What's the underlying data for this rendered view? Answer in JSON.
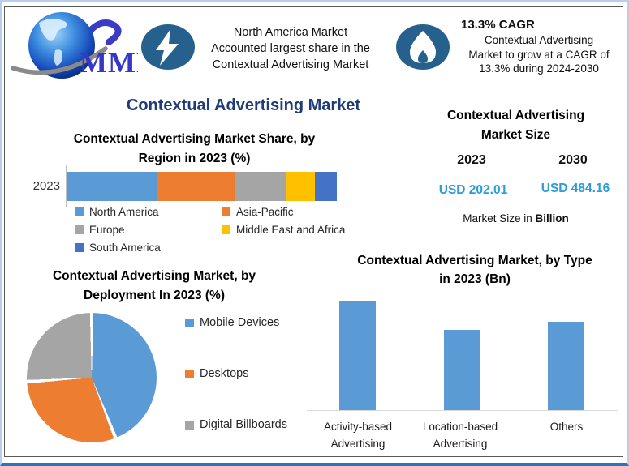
{
  "logo": {
    "text": "MMR"
  },
  "header": {
    "highlight_share": {
      "lines": [
        "North America Market",
        "Accounted largest share in the",
        "Contextual Advertising Market"
      ]
    },
    "highlight_cagr": {
      "title": "13.3% CAGR",
      "lines": [
        "Contextual Advertising",
        "Market to grow at a CAGR of",
        "13.3% during 2024-2030"
      ]
    }
  },
  "main_title": "Contextual Advertising Market",
  "market_size": {
    "title_lines": [
      "Contextual Advertising",
      "Market Size"
    ],
    "years": [
      "2023",
      "2030"
    ],
    "values": [
      "USD 202.01",
      "USD 484.16"
    ],
    "note_prefix": "Market Size in ",
    "note_bold": "Billion"
  },
  "chart_data": [
    {
      "type": "bar",
      "subtype": "horizontal-stacked-100pct",
      "title": "Contextual Advertising Market Share, by Region in 2023 (%)",
      "title_lines": [
        "Contextual Advertising Market Share, by",
        "Region in 2023 (%)"
      ],
      "categories": [
        "2023"
      ],
      "series": [
        {
          "name": "North America",
          "values": [
            33
          ],
          "color": "#5B9BD5"
        },
        {
          "name": "Asia-Pacific",
          "values": [
            29
          ],
          "color": "#ED7D31"
        },
        {
          "name": "Europe",
          "values": [
            19
          ],
          "color": "#A5A5A5"
        },
        {
          "name": "Middle East and Africa",
          "values": [
            11
          ],
          "color": "#FFC000"
        },
        {
          "name": "South America",
          "values": [
            8
          ],
          "color": "#4472C4"
        }
      ],
      "xlabel": "",
      "ylabel": "",
      "xlim": [
        0,
        100
      ],
      "grid": false,
      "legend_position": "bottom"
    },
    {
      "type": "pie",
      "title": "Contextual Advertising Market, by Deployment In 2023 (%)",
      "title_lines": [
        "Contextual Advertising Market, by",
        "Deployment In 2023 (%)"
      ],
      "labels": [
        "Mobile Devices",
        "Desktops",
        "Digital Billboards"
      ],
      "values": [
        44,
        30,
        26
      ],
      "colors": [
        "#5B9BD5",
        "#ED7D31",
        "#A5A5A5"
      ],
      "start_angle_deg": 0,
      "legend_position": "right"
    },
    {
      "type": "bar",
      "title": "Contextual Advertising Market, by Type in 2023 (Bn)",
      "title_lines": [
        "Contextual Advertising Market, by Type",
        "in 2023 (Bn)"
      ],
      "categories": [
        "Activity-based Advertising",
        "Location-based Advertising",
        "Others"
      ],
      "values": [
        79,
        58,
        64
      ],
      "bar_color": "#5B9BD5",
      "xlabel": "",
      "ylabel": "",
      "y_axis_visible": false,
      "grid": false
    }
  ],
  "colors": {
    "accent_navy": "#1F3C78",
    "icon_circle": "#26618E",
    "value_blue": "#2B9CD8",
    "frame_light_blue": "#B6CFEC",
    "frame_bottom_blue": "#2E74B5",
    "axis_gray": "#D9D9D9"
  }
}
